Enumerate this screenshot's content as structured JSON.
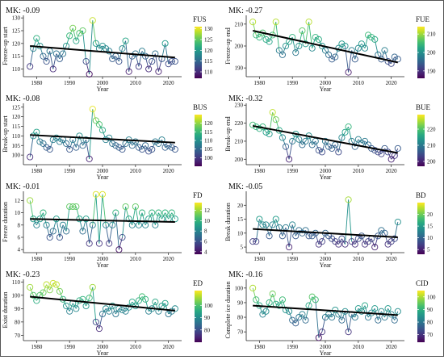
{
  "chart_data": [
    {
      "type": "scatter",
      "mk": "MK: -0.09",
      "ylabel": "Freeze-up start",
      "xlabel": "Year",
      "legend_title": "FUS",
      "xlim": [
        1976,
        2024
      ],
      "ylim": [
        107,
        131
      ],
      "yticks": [
        110,
        115,
        120,
        125,
        130
      ],
      "xticks": [
        1980,
        1990,
        2000,
        2010,
        2020
      ],
      "colorbar_ticks": [
        110,
        115,
        120,
        125,
        130
      ],
      "color_range": [
        107,
        131
      ],
      "trend": [
        119,
        114.5
      ],
      "x": [
        1978,
        1979,
        1980,
        1981,
        1982,
        1983,
        1984,
        1985,
        1986,
        1987,
        1988,
        1989,
        1990,
        1991,
        1992,
        1993,
        1994,
        1995,
        1996,
        1997,
        1998,
        1999,
        2000,
        2001,
        2002,
        2003,
        2004,
        2005,
        2006,
        2007,
        2008,
        2009,
        2010,
        2011,
        2012,
        2013,
        2014,
        2015,
        2016,
        2017,
        2018,
        2019,
        2020,
        2021,
        2022
      ],
      "values": [
        111,
        118,
        122,
        119,
        115,
        113,
        117,
        110,
        116,
        114,
        116,
        119,
        123,
        126,
        121,
        124,
        125,
        113,
        108,
        129,
        120,
        118,
        119,
        118,
        117,
        114,
        115,
        113,
        118,
        121,
        109,
        115,
        116,
        111,
        117,
        115,
        110,
        113,
        116,
        109,
        114,
        120,
        112,
        113,
        113
      ]
    },
    {
      "type": "scatter",
      "mk": "MK: -0.27",
      "ylabel": "Freeze-up end",
      "xlabel": "Year",
      "legend_title": "FUE",
      "xlim": [
        1976,
        2024
      ],
      "ylim": [
        186,
        214
      ],
      "yticks": [
        190,
        200,
        210
      ],
      "xticks": [
        1980,
        1990,
        2000,
        2010,
        2020
      ],
      "colorbar_ticks": [
        190,
        200,
        210
      ],
      "color_range": [
        186,
        214
      ],
      "trend": [
        207,
        192.5
      ],
      "x": [
        1978,
        1979,
        1980,
        1981,
        1982,
        1983,
        1984,
        1985,
        1986,
        1987,
        1988,
        1989,
        1990,
        1991,
        1992,
        1993,
        1994,
        1995,
        1996,
        1997,
        1998,
        1999,
        2000,
        2001,
        2002,
        2003,
        2004,
        2005,
        2006,
        2007,
        2008,
        2009,
        2010,
        2011,
        2012,
        2013,
        2014,
        2015,
        2016,
        2017,
        2018,
        2019,
        2020,
        2021,
        2022
      ],
      "values": [
        211,
        205,
        204,
        206,
        203,
        202,
        205,
        211,
        198,
        196,
        200,
        202,
        204,
        197,
        200,
        207,
        201,
        211,
        199,
        204,
        203,
        200,
        198,
        196,
        194,
        195,
        199,
        201,
        200,
        188,
        198,
        194,
        199,
        201,
        199,
        205,
        204,
        203,
        196,
        194,
        198,
        193,
        192,
        195,
        194
      ]
    },
    {
      "type": "scatter",
      "mk": "MK: -0.08",
      "ylabel": "Break-up start",
      "xlabel": "Year",
      "legend_title": "BUS",
      "xlim": [
        1976,
        2024
      ],
      "ylim": [
        95,
        127
      ],
      "yticks": [
        100,
        105,
        110,
        115,
        120,
        125
      ],
      "xticks": [
        1980,
        1990,
        2000,
        2010,
        2020
      ],
      "colorbar_ticks": [
        100,
        105,
        110,
        115,
        120
      ],
      "color_range": [
        95,
        125
      ],
      "trend": [
        110.5,
        106.5
      ],
      "x": [
        1978,
        1979,
        1980,
        1981,
        1982,
        1983,
        1984,
        1985,
        1986,
        1987,
        1988,
        1989,
        1990,
        1991,
        1992,
        1993,
        1994,
        1995,
        1996,
        1997,
        1998,
        1999,
        2000,
        2001,
        2002,
        2003,
        2004,
        2005,
        2006,
        2007,
        2008,
        2009,
        2010,
        2011,
        2012,
        2013,
        2014,
        2015,
        2016,
        2017,
        2018,
        2019,
        2020,
        2021,
        2022
      ],
      "values": [
        99,
        110,
        112,
        107,
        106,
        104,
        103,
        108,
        109,
        107,
        108,
        106,
        103,
        108,
        104,
        110,
        105,
        108,
        98,
        124,
        118,
        116,
        113,
        108,
        109,
        106,
        105,
        104,
        103,
        106,
        108,
        105,
        107,
        104,
        103,
        105,
        102,
        103,
        107,
        106,
        108,
        104,
        105,
        104,
        103
      ]
    },
    {
      "type": "scatter",
      "mk": "MK: -0.32",
      "ylabel": "Break-up end",
      "xlabel": "Year",
      "legend_title": "BUE",
      "xlim": [
        1976,
        2024
      ],
      "ylim": [
        197,
        231
      ],
      "yticks": [
        200,
        210,
        220,
        230
      ],
      "xticks": [
        1980,
        1990,
        2000,
        2010,
        2020
      ],
      "colorbar_ticks": [
        200,
        210,
        220
      ],
      "color_range": [
        197,
        229
      ],
      "trend": [
        218.5,
        203.5
      ],
      "x": [
        1978,
        1979,
        1980,
        1981,
        1982,
        1983,
        1984,
        1985,
        1986,
        1987,
        1988,
        1989,
        1990,
        1991,
        1992,
        1993,
        1994,
        1995,
        1996,
        1997,
        1998,
        1999,
        2000,
        2001,
        2002,
        2003,
        2004,
        2005,
        2006,
        2007,
        2008,
        2009,
        2010,
        2011,
        2012,
        2013,
        2014,
        2015,
        2016,
        2017,
        2018,
        2019,
        2020,
        2021,
        2022
      ],
      "values": [
        219,
        218,
        217,
        218,
        215,
        214,
        226,
        222,
        216,
        212,
        207,
        200,
        210,
        214,
        211,
        208,
        210,
        213,
        208,
        210,
        205,
        204,
        210,
        207,
        206,
        208,
        204,
        212,
        215,
        218,
        210,
        207,
        211,
        209,
        210,
        208,
        206,
        205,
        204,
        203,
        206,
        204,
        200,
        202,
        206
      ]
    },
    {
      "type": "scatter",
      "mk": "MK: -0.01",
      "ylabel": "Freeze duration",
      "xlabel": "Year",
      "legend_title": "FD",
      "xlim": [
        1976,
        2024
      ],
      "ylim": [
        3.5,
        13.5
      ],
      "yticks": [
        4,
        6,
        8,
        10,
        12
      ],
      "xticks": [
        1980,
        1990,
        2000,
        2010,
        2020
      ],
      "colorbar_ticks": [
        4,
        6,
        8,
        10,
        12
      ],
      "color_range": [
        3.5,
        13.5
      ],
      "trend": [
        9,
        8.5
      ],
      "x": [
        1978,
        1979,
        1980,
        1981,
        1982,
        1983,
        1984,
        1985,
        1986,
        1987,
        1988,
        1989,
        1990,
        1991,
        1992,
        1993,
        1994,
        1995,
        1996,
        1997,
        1998,
        1999,
        2000,
        2001,
        2002,
        2003,
        2004,
        2005,
        2006,
        2007,
        2008,
        2009,
        2010,
        2011,
        2012,
        2013,
        2014,
        2015,
        2016,
        2017,
        2018,
        2019,
        2020,
        2021,
        2022
      ],
      "values": [
        12,
        9,
        8,
        9,
        10,
        8,
        6,
        7,
        9,
        6,
        8,
        7,
        11,
        11,
        11,
        9,
        7,
        9,
        5,
        8,
        13,
        5,
        13,
        8,
        5,
        8,
        10,
        4,
        6,
        11,
        9,
        8,
        11,
        8,
        10,
        8,
        9,
        10,
        8,
        10,
        9,
        10,
        9,
        10,
        9
      ]
    },
    {
      "type": "scatter",
      "mk": "MK: -0.05",
      "ylabel": "Break duration",
      "xlabel": "Year",
      "legend_title": "BD",
      "xlim": [
        1976,
        2024
      ],
      "ylim": [
        3,
        25
      ],
      "yticks": [
        5,
        10,
        15,
        20
      ],
      "xticks": [
        1980,
        1990,
        2000,
        2010,
        2020
      ],
      "colorbar_ticks": [
        5,
        10,
        15,
        20
      ],
      "color_range": [
        3,
        25
      ],
      "trend": [
        11.5,
        8.5
      ],
      "x": [
        1978,
        1979,
        1980,
        1981,
        1982,
        1983,
        1984,
        1985,
        1986,
        1987,
        1988,
        1989,
        1990,
        1991,
        1992,
        1993,
        1994,
        1995,
        1996,
        1997,
        1998,
        1999,
        2000,
        2001,
        2002,
        2003,
        2004,
        2005,
        2006,
        2007,
        2008,
        2009,
        2010,
        2011,
        2012,
        2013,
        2014,
        2015,
        2016,
        2017,
        2018,
        2019,
        2020,
        2021,
        2022
      ],
      "values": [
        7,
        7,
        15,
        13,
        13,
        9,
        13,
        15,
        12,
        9,
        12,
        5,
        13,
        9,
        11,
        10,
        11,
        9,
        9,
        10,
        6,
        7,
        10,
        9,
        8,
        7,
        6,
        8,
        6,
        22,
        7,
        6,
        8,
        9,
        6,
        7,
        8,
        5,
        9,
        11,
        10,
        6,
        7,
        8,
        14
      ]
    },
    {
      "type": "scatter",
      "mk": "MK: -0.23",
      "ylabel": "Exist duration",
      "xlabel": "Year",
      "legend_title": "ED",
      "xlim": [
        1976,
        2024
      ],
      "ylim": [
        66,
        112
      ],
      "yticks": [
        70,
        80,
        90,
        100,
        110
      ],
      "xticks": [
        1980,
        1990,
        2000,
        2010,
        2020
      ],
      "colorbar_ticks": [
        80,
        90,
        100
      ],
      "color_range": [
        70,
        112
      ],
      "trend": [
        99,
        88.5
      ],
      "x": [
        1978,
        1979,
        1980,
        1981,
        1982,
        1983,
        1984,
        1985,
        1986,
        1987,
        1988,
        1989,
        1990,
        1991,
        1992,
        1993,
        1994,
        1995,
        1996,
        1997,
        1998,
        1999,
        2000,
        2001,
        2002,
        2003,
        2004,
        2005,
        2006,
        2007,
        2008,
        2009,
        2010,
        2011,
        2012,
        2013,
        2014,
        2015,
        2016,
        2017,
        2018,
        2019,
        2020,
        2021,
        2022
      ],
      "values": [
        106,
        100,
        96,
        100,
        102,
        108,
        104,
        109,
        108,
        103,
        97,
        92,
        88,
        94,
        90,
        96,
        97,
        92,
        98,
        106,
        80,
        75,
        86,
        90,
        88,
        92,
        86,
        90,
        89,
        88,
        91,
        95,
        92,
        96,
        99,
        97,
        88,
        90,
        95,
        88,
        92,
        94,
        86,
        88,
        90
      ]
    },
    {
      "type": "scatter",
      "mk": "MK: -0.16",
      "ylabel": "Complete ice duration",
      "xlabel": "Year",
      "legend_title": "CID",
      "xlim": [
        1976,
        2024
      ],
      "ylim": [
        64,
        106
      ],
      "yticks": [
        70,
        80,
        90,
        100
      ],
      "xticks": [
        1980,
        1990,
        2000,
        2010,
        2020
      ],
      "colorbar_ticks": [
        70,
        80,
        90,
        100
      ],
      "color_range": [
        64,
        105
      ],
      "trend": [
        88,
        81.5
      ],
      "x": [
        1978,
        1979,
        1980,
        1981,
        1982,
        1983,
        1984,
        1985,
        1986,
        1987,
        1988,
        1989,
        1990,
        1991,
        1992,
        1993,
        1994,
        1995,
        1996,
        1997,
        1998,
        1999,
        2000,
        2001,
        2002,
        2003,
        2004,
        2005,
        2006,
        2007,
        2008,
        2009,
        2010,
        2011,
        2012,
        2013,
        2014,
        2015,
        2016,
        2017,
        2018,
        2019,
        2020,
        2021,
        2022
      ],
      "values": [
        100,
        92,
        88,
        82,
        84,
        90,
        96,
        89,
        88,
        92,
        85,
        84,
        78,
        76,
        80,
        82,
        78,
        88,
        94,
        92,
        66,
        70,
        80,
        82,
        80,
        85,
        82,
        78,
        84,
        70,
        82,
        80,
        86,
        84,
        88,
        80,
        83,
        86,
        78,
        84,
        80,
        86,
        82,
        78,
        84
      ]
    }
  ]
}
